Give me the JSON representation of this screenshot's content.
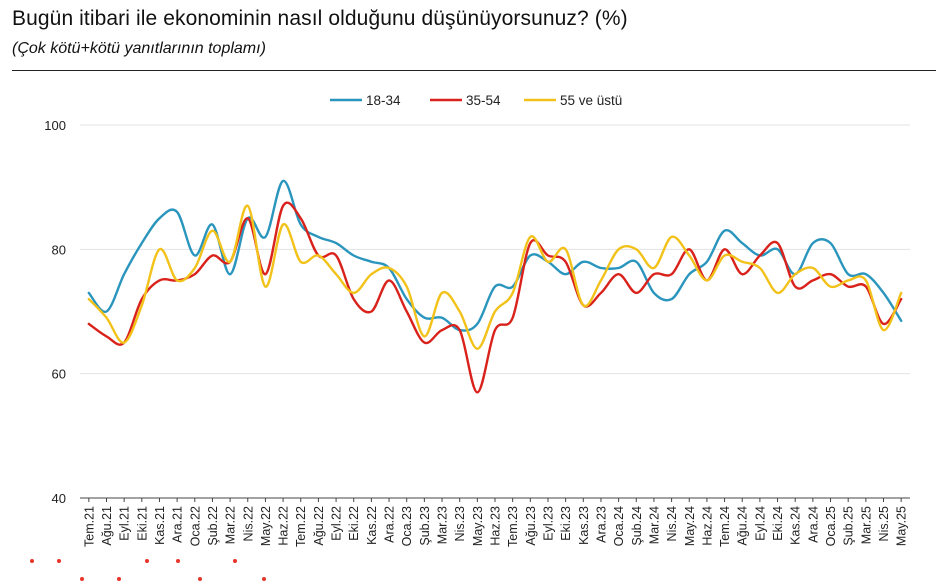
{
  "header": {
    "title": "Bugün itibari ile ekonominin nasıl olduğunu düşünüyorsunuz? (%)",
    "subtitle": "(Çok kötü+kötü yanıtlarının toplamı)"
  },
  "chart_data": {
    "type": "line",
    "title": "Bugün itibari ile ekonominin nasıl olduğunu düşünüyorsunuz? (%)",
    "subtitle": "(Çok kötü+kötü yanıtlarının toplamı)",
    "xlabel": "",
    "ylabel": "",
    "ylim": [
      40,
      100
    ],
    "yticks": [
      40,
      60,
      80,
      100
    ],
    "grid": true,
    "legend_position": "top-center",
    "categories": [
      "Tem.21",
      "Ağu.21",
      "Eyl.21",
      "Eki.21",
      "Kas.21",
      "Ara.21",
      "Oca.22",
      "Şub.22",
      "Mar.22",
      "Nis.22",
      "May.22",
      "Haz.22",
      "Tem.22",
      "Ağu.22",
      "Eyl.22",
      "Eki.22",
      "Kas.22",
      "Ara.22",
      "Oca.23",
      "Şub.23",
      "Mar.23",
      "Nis.23",
      "May.23",
      "Haz.23",
      "Tem.23",
      "Ağu.23",
      "Eyl.23",
      "Eki.23",
      "Kas.23",
      "Ara.23",
      "Oca.24",
      "Şub.24",
      "Mar.24",
      "Nis.24",
      "May.24",
      "Haz.24",
      "Tem.24",
      "Ağu.24",
      "Eyl.24",
      "Eki.24",
      "Kas.24",
      "Ara.24",
      "Oca.25",
      "Şub.25",
      "Mar.25",
      "Nis.25",
      "May.25"
    ],
    "series": [
      {
        "name": "18-34",
        "color": "#2a95bd",
        "values": [
          73,
          70,
          76,
          81,
          85,
          86,
          79,
          84,
          76,
          85,
          82,
          91,
          84,
          82,
          81,
          79,
          78,
          77,
          72,
          69,
          69,
          67,
          68,
          74,
          74,
          79,
          78,
          76,
          78,
          77,
          77,
          78,
          73,
          72,
          76,
          78,
          83,
          81,
          79,
          80,
          76,
          81,
          81,
          76,
          76,
          73,
          68.5
        ]
      },
      {
        "name": "35-54",
        "color": "#d9221b",
        "values": [
          68,
          66,
          65,
          72,
          75,
          75,
          76,
          79,
          78,
          85,
          76,
          87,
          85,
          79,
          79,
          72,
          70,
          75,
          70,
          65,
          67,
          67,
          57,
          67,
          69,
          81,
          79,
          78,
          71,
          73,
          76,
          73,
          76,
          76,
          80,
          75,
          80,
          76,
          79,
          81,
          74,
          75,
          76,
          74,
          74,
          68,
          72
        ]
      },
      {
        "name": "55 ve üstü",
        "color": "#f2c21a",
        "values": [
          72,
          69,
          65,
          71,
          80,
          75,
          77,
          83,
          78,
          87,
          74,
          84,
          78,
          79,
          76,
          73,
          76,
          77,
          74,
          66,
          73,
          70,
          64,
          70,
          73,
          82,
          78,
          80,
          71,
          75,
          80,
          80,
          77,
          82,
          79,
          75,
          79,
          78,
          77,
          73,
          76,
          77,
          74,
          75,
          75,
          67,
          73
        ]
      }
    ]
  }
}
